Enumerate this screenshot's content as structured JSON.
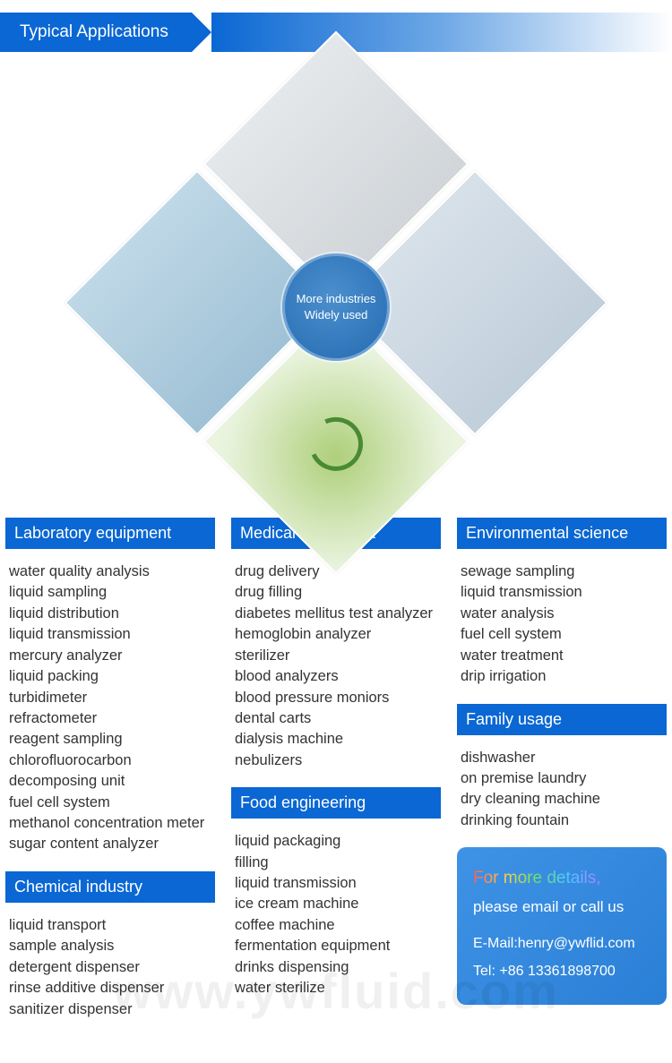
{
  "banner": {
    "title": "Typical Applications",
    "bg": "#0a67d3",
    "text_color": "#ffffff"
  },
  "center_badge": {
    "line1": "More industries",
    "line2": "Widely used"
  },
  "columns": {
    "left": {
      "sections": [
        {
          "title": "Laboratory equipment",
          "items": [
            "water quality analysis",
            "liquid sampling",
            "liquid distribution",
            "liquid transmission",
            "mercury analyzer",
            "liquid packing",
            "turbidimeter",
            "refractometer",
            "reagent sampling",
            "chlorofluorocarbon decomposing unit",
            "fuel cell system",
            "methanol concentration meter",
            "sugar content analyzer"
          ]
        },
        {
          "title": "Chemical industry",
          "items": [
            "liquid transport",
            "sample analysis",
            "detergent dispenser",
            "rinse additive dispenser",
            "sanitizer dispenser"
          ]
        }
      ]
    },
    "middle": {
      "sections": [
        {
          "title": "Medical equipment",
          "items": [
            "drug delivery",
            "drug filling",
            "diabetes mellitus test analyzer",
            "hemoglobin analyzer",
            "sterilizer",
            "blood analyzers",
            "blood pressure moniors",
            "dental carts",
            "dialysis machine",
            "nebulizers"
          ]
        },
        {
          "title": "Food engineering",
          "items": [
            "liquid packaging",
            "filling",
            "liquid transmission",
            "ice cream machine",
            "coffee machine",
            "fermentation equipment",
            "drinks dispensing",
            "water sterilize"
          ]
        }
      ]
    },
    "right": {
      "sections": [
        {
          "title": "Environmental science",
          "items": [
            "sewage sampling",
            "liquid transmission",
            "water analysis",
            "fuel cell system",
            "water treatment",
            "drip irrigation"
          ]
        },
        {
          "title": "Family usage",
          "items": [
            "dishwasher",
            "on premise laundry",
            "dry cleaning machine",
            "drinking fountain"
          ]
        }
      ]
    }
  },
  "contact": {
    "headline_colored": "For more details,",
    "headline_plain": "please email or call us",
    "email_label": "E-Mail:",
    "email_value": "henry@ywflid.com",
    "tel_label": "Tel:",
    "tel_value": "+86 13361898700",
    "bg_gradient": [
      "#3f93e6",
      "#2a7fd6"
    ]
  },
  "watermark": "www.ywfluid.com",
  "style": {
    "header_bg": "#0a67d3",
    "header_text": "#ffffff",
    "body_text": "#333333",
    "body_bg": "#ffffff",
    "font_family": "Arial, Helvetica, sans-serif",
    "title_fontsize_pt": 14,
    "header_fontsize_pt": 13.5,
    "item_fontsize_pt": 12.5
  }
}
